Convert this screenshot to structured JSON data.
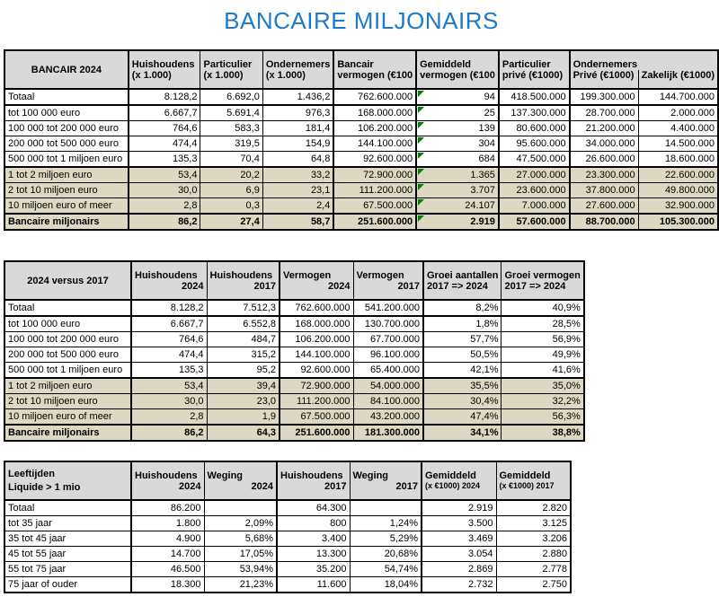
{
  "page_title": "BANCAIRE MILJONAIRS",
  "colors": {
    "title_blue": "#1e7ac8",
    "header_gray": "#d9d9d9",
    "highlight_beige": "#ddd8c2",
    "error_triangle_green": "#008000"
  },
  "table1": {
    "title": "BANCAIR 2024",
    "col_headers": [
      {
        "line1": "Huishoudens",
        "line2": "(x 1.000)"
      },
      {
        "line1": "Particulier",
        "line2": "(x 1.000)"
      },
      {
        "line1": "Ondernemers",
        "line2": "(x 1.000)"
      },
      {
        "line1": "Bancair",
        "line2": "vermogen (€100"
      },
      {
        "line1": "Gemiddeld",
        "line2": "vermogen (€100"
      },
      {
        "line1": "Particulier",
        "line2": "privé (€1000)"
      },
      {
        "line1": "Ondernemers",
        "line2a": "Privé (€1000)",
        "line2b": "Zakelijk (€1000)"
      }
    ],
    "rows": [
      {
        "label": "Totaal",
        "style": "tb",
        "values": [
          "8.128,2",
          "6.692,0",
          "1.436,2",
          "762.600.000",
          "94",
          "418.500.000",
          "199.300.000",
          "144.700.000"
        ]
      },
      {
        "label": "tot 100 000 euro",
        "style": "",
        "values": [
          "6.667,7",
          "5.691,4",
          "976,3",
          "168.000.000",
          "25",
          "137.300.000",
          "28.700.000",
          "2.000.000"
        ]
      },
      {
        "label": "100 000 tot 200 000 euro",
        "style": "",
        "values": [
          "764,6",
          "583,3",
          "181,4",
          "106.200.000",
          "139",
          "80.600.000",
          "21.200.000",
          "4.400.000"
        ]
      },
      {
        "label": "200 000 tot 500 000 euro",
        "style": "",
        "values": [
          "474,4",
          "319,5",
          "154,9",
          "144.100.000",
          "304",
          "95.600.000",
          "34.000.000",
          "14.500.000"
        ]
      },
      {
        "label": "500 000 tot 1 miljoen euro",
        "style": "",
        "values": [
          "135,3",
          "70,4",
          "64,8",
          "92.600.000",
          "684",
          "47.500.000",
          "26.600.000",
          "18.600.000"
        ]
      },
      {
        "label": "1 tot 2 miljoen euro",
        "style": "beige sep",
        "values": [
          "53,4",
          "20,2",
          "33,2",
          "72.900.000",
          "1.365",
          "27.000.000",
          "23.300.000",
          "22.600.000"
        ]
      },
      {
        "label": "2 tot 10 miljoen euro",
        "style": "beige",
        "values": [
          "30,0",
          "6,9",
          "23,1",
          "111.200.000",
          "3.707",
          "23.600.000",
          "37.800.000",
          "49.800.000"
        ]
      },
      {
        "label": "10 miljoen euro of meer",
        "style": "beige",
        "values": [
          "2,8",
          "0,3",
          "2,4",
          "67.500.000",
          "24.107",
          "7.000.000",
          "27.600.000",
          "32.900.000"
        ]
      },
      {
        "label": "Bancaire miljonairs",
        "style": "beige total sep",
        "values": [
          "86,2",
          "27,4",
          "58,7",
          "251.600.000",
          "2.919",
          "57.600.000",
          "88.700.000",
          "105.300.000"
        ]
      }
    ]
  },
  "table2": {
    "title": "2024 versus 2017",
    "col_headers": [
      {
        "line1": "Huishoudens",
        "line2": "2024"
      },
      {
        "line1": "Huishoudens",
        "line2": "2017"
      },
      {
        "line1": "Vermogen",
        "line2": "2024"
      },
      {
        "line1": "Vermogen",
        "line2": "2017"
      },
      {
        "line1": "Groei aantallen",
        "line2": "2017 => 2024"
      },
      {
        "line1": "Groei vermogen",
        "line2": "2017 => 2024"
      }
    ],
    "rows": [
      {
        "label": "Totaal",
        "style": "tb",
        "values": [
          "8.128,2",
          "7.512,3",
          "762.600.000",
          "541.200.000",
          "8,2%",
          "40,9%"
        ]
      },
      {
        "label": "tot 100 000 euro",
        "style": "",
        "values": [
          "6.667,7",
          "6.552,8",
          "168.000.000",
          "130.700.000",
          "1,8%",
          "28,5%"
        ]
      },
      {
        "label": "100 000 tot 200 000 euro",
        "style": "",
        "values": [
          "764,6",
          "484,7",
          "106.200.000",
          "67.700.000",
          "57,7%",
          "56,9%"
        ]
      },
      {
        "label": "200 000 tot 500 000 euro",
        "style": "",
        "values": [
          "474,4",
          "315,2",
          "144.100.000",
          "96.100.000",
          "50,5%",
          "49,9%"
        ]
      },
      {
        "label": "500 000 tot 1 miljoen euro",
        "style": "",
        "values": [
          "135,3",
          "95,2",
          "92.600.000",
          "65.400.000",
          "42,1%",
          "41,6%"
        ]
      },
      {
        "label": "1 tot 2 miljoen euro",
        "style": "beige sep",
        "values": [
          "53,4",
          "39,4",
          "72.900.000",
          "54.000.000",
          "35,5%",
          "35,0%"
        ]
      },
      {
        "label": "2 tot 10 miljoen euro",
        "style": "beige",
        "values": [
          "30,0",
          "23,0",
          "111.200.000",
          "84.100.000",
          "30,4%",
          "32,2%"
        ]
      },
      {
        "label": "10 miljoen euro of meer",
        "style": "beige",
        "values": [
          "2,8",
          "1,9",
          "67.500.000",
          "43.200.000",
          "47,4%",
          "56,3%"
        ]
      },
      {
        "label": "Bancaire miljonairs",
        "style": "beige total sep",
        "values": [
          "86,2",
          "64,3",
          "251.600.000",
          "181.300.000",
          "34,1%",
          "38,8%"
        ]
      }
    ]
  },
  "table3": {
    "title_line1": "Leeftijden",
    "title_line2": "Liquide > 1 mio",
    "col_headers": [
      {
        "line1": "Huishoudens",
        "line2": "2024"
      },
      {
        "line1": "Weging",
        "line2": "2024"
      },
      {
        "line1": "Huishoudens",
        "line2": "2017"
      },
      {
        "line1": "Weging",
        "line2": "2017"
      },
      {
        "line1": "Gemiddeld",
        "line2": "(x €1000) 2024"
      },
      {
        "line1": "Gemiddeld",
        "line2": "(x €1000) 2017"
      }
    ],
    "rows": [
      {
        "label": "Totaal",
        "style": "",
        "values": [
          "86.200",
          "",
          "64.300",
          "",
          "2.919",
          "2.820"
        ]
      },
      {
        "label": "tot 35 jaar",
        "style": "",
        "values": [
          "1.800",
          "2,09%",
          "800",
          "1,24%",
          "3.500",
          "3.125"
        ]
      },
      {
        "label": "35 tot 45 jaar",
        "style": "",
        "values": [
          "4.900",
          "5,68%",
          "3.400",
          "5,29%",
          "3.469",
          "3.206"
        ]
      },
      {
        "label": "45 tot 55 jaar",
        "style": "",
        "values": [
          "14.700",
          "17,05%",
          "13.300",
          "20,68%",
          "3.054",
          "2.880"
        ]
      },
      {
        "label": "55 tot 75 jaar",
        "style": "",
        "values": [
          "46.500",
          "53,94%",
          "35.200",
          "54,74%",
          "2.869",
          "2.778"
        ]
      },
      {
        "label": "75 jaar of ouder",
        "style": "",
        "values": [
          "18.300",
          "21,23%",
          "11.600",
          "18,04%",
          "2.732",
          "2.750"
        ]
      }
    ]
  }
}
